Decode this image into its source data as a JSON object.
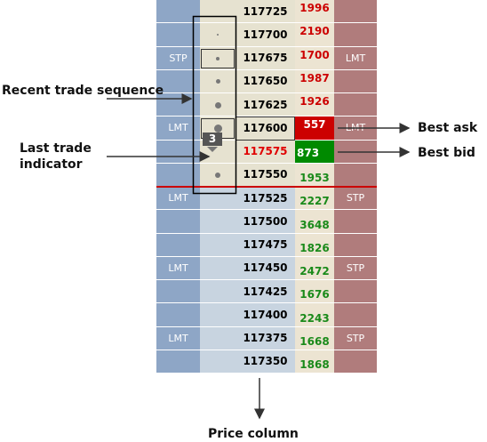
{
  "ladder": {
    "rows": [
      {
        "price": "117725",
        "ask": "1996"
      },
      {
        "price": "117700",
        "ask": "2190"
      },
      {
        "price": "117675",
        "ask": "1700",
        "left": "STP",
        "right": "LMT"
      },
      {
        "price": "117650",
        "ask": "1987"
      },
      {
        "price": "117625",
        "ask": "1926"
      },
      {
        "price": "117600",
        "ask": "557",
        "left": "LMT",
        "right": "LMT"
      },
      {
        "price": "117575",
        "bid": "873"
      },
      {
        "price": "117550",
        "bid": "1953"
      },
      {
        "price": "117525",
        "bid": "2227",
        "left": "LMT",
        "right": "STP"
      },
      {
        "price": "117500",
        "bid": "3648"
      },
      {
        "price": "117475",
        "bid": "1826"
      },
      {
        "price": "117450",
        "bid": "2472",
        "left": "LMT",
        "right": "STP"
      },
      {
        "price": "117425",
        "bid": "1676"
      },
      {
        "price": "117400",
        "bid": "2243"
      },
      {
        "price": "117375",
        "bid": "1668",
        "left": "LMT",
        "right": "STP"
      },
      {
        "price": "117350",
        "bid": "1868"
      }
    ],
    "last_trade_count": "3"
  },
  "annotations": {
    "recent": "Recent trade sequence",
    "last": "Last trade indicator",
    "best_ask": "Best ask",
    "best_bid": "Best bid",
    "price_column": "Price column"
  }
}
